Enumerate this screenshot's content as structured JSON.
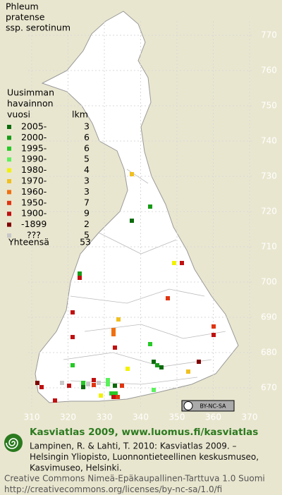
{
  "title": [
    "Phleum",
    "pratense",
    "ssp. serotinum"
  ],
  "legend": {
    "heading": [
      "Uusimman",
      "havainnon",
      "vuosi"
    ],
    "count_header": "lkm",
    "entries": [
      {
        "label": "2005-",
        "count": 3,
        "color": "#0b6b0b"
      },
      {
        "label": "2000-",
        "count": 6,
        "color": "#169a16"
      },
      {
        "label": "1995-",
        "count": 6,
        "color": "#26c926"
      },
      {
        "label": "1990-",
        "count": 5,
        "color": "#5cf05c"
      },
      {
        "label": "1980-",
        "count": 4,
        "color": "#f2f200"
      },
      {
        "label": "1970-",
        "count": 3,
        "color": "#f0c020"
      },
      {
        "label": "1960-",
        "count": 3,
        "color": "#f07010"
      },
      {
        "label": "1950-",
        "count": 7,
        "color": "#e03510"
      },
      {
        "label": "1900-",
        "count": 9,
        "color": "#c01010"
      },
      {
        "label": "-1899",
        "count": 2,
        "color": "#800000"
      },
      {
        "label": "???",
        "count": 5,
        "color": "#c8c8c8"
      }
    ],
    "total": {
      "label": "Yhteensä",
      "count": 53
    }
  },
  "grid": {
    "yticks": [
      770,
      760,
      750,
      740,
      730,
      720,
      710,
      700,
      690,
      680,
      670
    ],
    "xticks": [
      310,
      320,
      330,
      340,
      350,
      360,
      370
    ]
  },
  "badge": "BY-NC-SA",
  "footer": {
    "brand": "Kasviatlas 2009, www.luomus.fi/kasviatlas",
    "citation": [
      "Lampinen, R. & Lahti, T. 2010: Kasviatlas 2009. –",
      "Helsingin Yliopisto, Luonnontieteellinen keskusmuseo,",
      "Kasvimuseo, Helsinki."
    ],
    "license": [
      "Creative Commons Nimeä-Epäkaupallinen-Tarttuva 1.0 Suomi",
      "http://creativecommons.org/licenses/by-nc-sa/1.0/fi"
    ]
  }
}
